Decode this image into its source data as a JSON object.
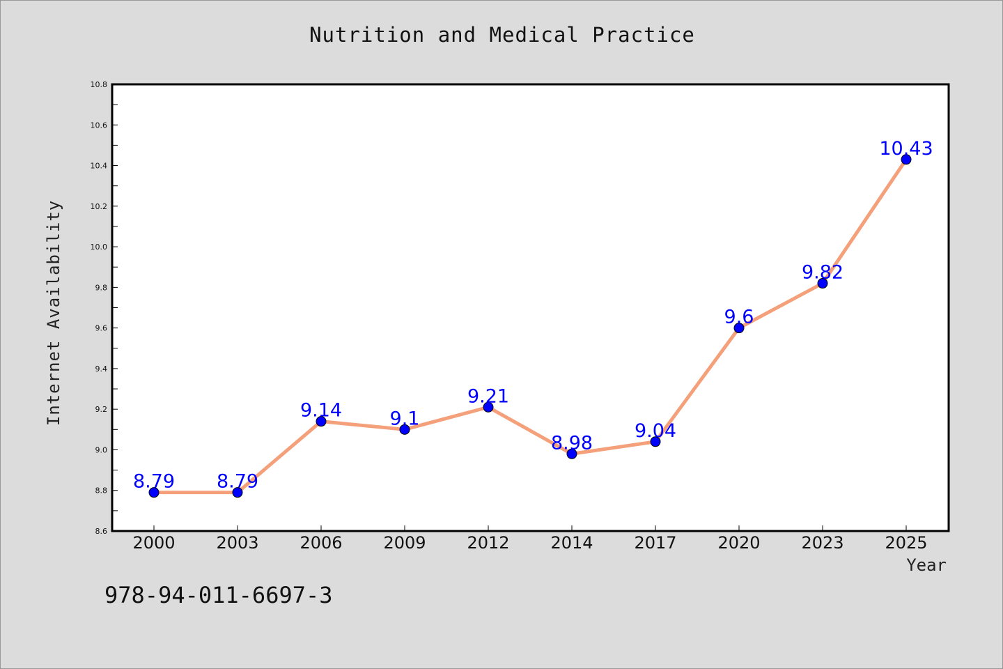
{
  "chart_data": {
    "type": "line",
    "title": "Nutrition and Medical Practice",
    "xlabel": "Year",
    "ylabel": "Internet Availability",
    "categories": [
      "2000",
      "2003",
      "2006",
      "2009",
      "2012",
      "2014",
      "2017",
      "2020",
      "2023",
      "2025"
    ],
    "values": [
      8.79,
      8.79,
      9.14,
      9.1,
      9.21,
      8.98,
      9.04,
      9.6,
      9.82,
      10.43
    ],
    "data_labels": [
      "8.79",
      "8.79",
      "9.14",
      "9.1",
      "9.21",
      "8.98",
      "9.04",
      "9.6",
      "9.82",
      "10.43"
    ],
    "ylim": [
      8.6,
      10.8
    ],
    "yticks": [
      "8.6",
      "8.8",
      "9.0",
      "9.2",
      "9.4",
      "9.6",
      "9.8",
      "10.0",
      "10.2",
      "10.4",
      "10.6",
      "10.8"
    ],
    "grid": false,
    "line_color": "#f4a07a",
    "marker_color": "#0000ff",
    "label_color": "#0000ff"
  },
  "footer": {
    "isbn": "978-94-011-6697-3"
  }
}
